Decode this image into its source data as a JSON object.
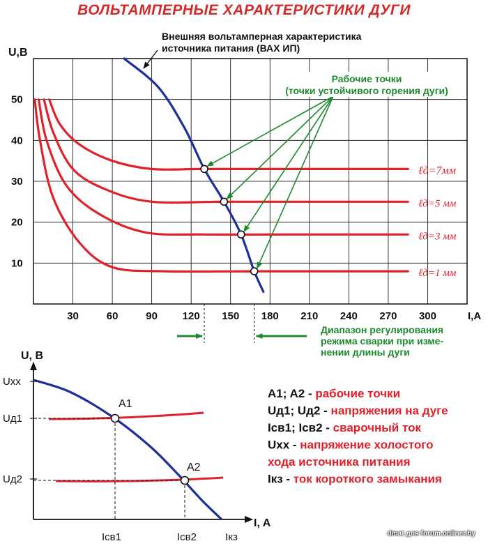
{
  "page": {
    "title": "ВОЛЬТАМПЕРНЫЕ ХАРАКТЕРИСТИКИ ДУГИ",
    "watermark": "dmat для forum.onliner.by"
  },
  "colors": {
    "title": "#d42a2a",
    "arc": "#e0202a",
    "source": "#1e2e9a",
    "annotation": "#1e8a2e",
    "grid": "#000000"
  },
  "chart_data": [
    {
      "type": "line",
      "title": "",
      "xlabel": "I,A",
      "ylabel": "U,B",
      "xlim": [
        0,
        330
      ],
      "ylim": [
        0,
        60
      ],
      "x_ticks": [
        "30",
        "60",
        "90",
        "120",
        "150",
        "180",
        "210",
        "240",
        "270",
        "300"
      ],
      "y_ticks": [
        "10",
        "20",
        "30",
        "40",
        "50"
      ],
      "grid": true,
      "series": [
        {
          "name": "Внешняя вольтамперная характеристика источника питания (ВАХ ИП)",
          "kind": "source",
          "points": [
            [
              69,
              60
            ],
            [
              95,
              53
            ],
            [
              115,
              43
            ],
            [
              130,
              33
            ],
            [
              145,
              25
            ],
            [
              158,
              17
            ],
            [
              168,
              8
            ],
            [
              175,
              3
            ]
          ]
        },
        {
          "name": "ℓд=7мм",
          "kind": "arc",
          "points": [
            [
              12,
              50
            ],
            [
              20,
              44
            ],
            [
              35,
              39
            ],
            [
              60,
              35
            ],
            [
              90,
              33
            ],
            [
              130,
              33
            ],
            [
              200,
              33
            ],
            [
              285,
              33
            ]
          ]
        },
        {
          "name": "ℓд=5 мм",
          "kind": "arc",
          "points": [
            [
              8,
              50
            ],
            [
              15,
              42
            ],
            [
              30,
              33
            ],
            [
              55,
              28
            ],
            [
              90,
              25
            ],
            [
              145,
              25
            ],
            [
              220,
              25
            ],
            [
              285,
              25
            ]
          ]
        },
        {
          "name": "ℓд=3 мм",
          "kind": "arc",
          "points": [
            [
              4,
              50
            ],
            [
              10,
              40
            ],
            [
              25,
              29
            ],
            [
              50,
              22
            ],
            [
              85,
              17.5
            ],
            [
              130,
              17
            ],
            [
              200,
              17
            ],
            [
              285,
              17
            ]
          ]
        },
        {
          "name": "ℓд=1 мм",
          "kind": "arc",
          "points": [
            [
              1,
              50
            ],
            [
              5,
              40
            ],
            [
              15,
              26
            ],
            [
              35,
              15
            ],
            [
              60,
              9
            ],
            [
              100,
              8
            ],
            [
              170,
              8
            ],
            [
              285,
              8
            ]
          ]
        }
      ],
      "operating_points": [
        [
          130,
          33
        ],
        [
          145,
          25
        ],
        [
          158,
          17
        ],
        [
          168,
          8
        ]
      ],
      "range_marks": [
        130,
        168
      ],
      "annotations": {
        "source_label": "Внешняя вольтамперная характеристика источника питания (ВАХ ИП)",
        "source_label_line1": "Внешняя вольтамперная характеристика",
        "source_label_line2": "источника питания (ВАХ ИП)",
        "points_label_line1": "Рабочие точки",
        "points_label_line2": "(точки устойчивого горения дуги)",
        "range_label_line1": "Диапазон регулирования",
        "range_label_line2": "режима сварки при изме-",
        "range_label_line3": "нении длины дуги"
      }
    },
    {
      "type": "line",
      "title": "",
      "xlabel": "I, A",
      "ylabel": "U, B",
      "y_marks": [
        "Uxx",
        "Uд1",
        "Uд2"
      ],
      "x_marks": [
        "Iсв1",
        "Iсв2",
        "Iкз"
      ],
      "points": [
        "A1",
        "A2"
      ],
      "legend": [
        {
          "key": "A1; A2 - ",
          "text": "рабочие точки"
        },
        {
          "key": "Uд1; Uд2 - ",
          "text": "напряжения на дуге"
        },
        {
          "key": "Iсв1; Iсв2 - ",
          "text": "сварочный ток"
        },
        {
          "key": "Uxx - ",
          "text": "напряжение холостого"
        },
        {
          "key": "",
          "text": "хода источника питания"
        },
        {
          "key": "Iкз - ",
          "text": "ток короткого замыкания"
        }
      ]
    }
  ]
}
